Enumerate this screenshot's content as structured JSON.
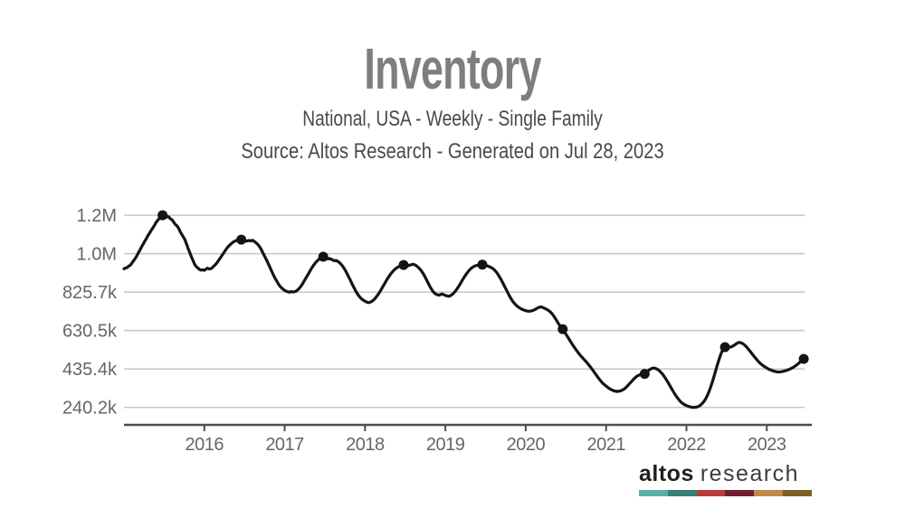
{
  "chart_data": {
    "type": "line",
    "title": "Inventory",
    "subtitle": "National, USA - Weekly - Single Family",
    "source": "Source: Altos Research - Generated on Jul 28, 2023",
    "grid": true,
    "legend": false,
    "x_axis": {
      "range": [
        2015.0,
        2023.56
      ],
      "tick_years": [
        2016,
        2017,
        2018,
        2019,
        2020,
        2021,
        2022,
        2023
      ]
    },
    "y_axis": {
      "unit": "count (k = thousands)",
      "range": [
        151,
        1276
      ],
      "ticks": [
        {
          "label": "1.2M",
          "value": 1216.0
        },
        {
          "label": "1.0M",
          "value": 1020.8
        },
        {
          "label": "825.7k",
          "value": 825.7
        },
        {
          "label": "630.5k",
          "value": 630.5
        },
        {
          "label": "435.4k",
          "value": 435.4
        },
        {
          "label": "240.2k",
          "value": 240.2
        }
      ]
    },
    "series": [
      {
        "name": "Single Family Inventory (thousands)",
        "x_start": 2015.0,
        "x_step": 0.02,
        "values": [
          944,
          948,
          950,
          958,
          962,
          974,
          985,
          996,
          1010,
          1026,
          1040,
          1056,
          1070,
          1085,
          1098,
          1114,
          1126,
          1140,
          1152,
          1165,
          1180,
          1190,
          1200,
          1210,
          1216,
          1209,
          1205,
          1210,
          1206,
          1197,
          1192,
          1180,
          1168,
          1162,
          1150,
          1132,
          1118,
          1105,
          1090,
          1068,
          1045,
          1025,
          1004,
          985,
          966,
          955,
          948,
          940,
          937,
          939,
          936,
          942,
          947,
          943,
          944,
          950,
          958,
          966,
          976,
          988,
          1000,
          1012,
          1024,
          1036,
          1048,
          1058,
          1066,
          1073,
          1080,
          1084,
          1088,
          1090,
          1091,
          1092,
          1089,
          1087,
          1084,
          1086,
          1088,
          1085,
          1089,
          1083,
          1077,
          1070,
          1060,
          1048,
          1032,
          1016,
          1000,
          984,
          966,
          948,
          930,
          912,
          896,
          882,
          868,
          856,
          848,
          840,
          834,
          830,
          827,
          825,
          828,
          826,
          827,
          830,
          836,
          844,
          854,
          866,
          880,
          894,
          908,
          922,
          936,
          950,
          962,
          973,
          982,
          990,
          997,
          1002,
          1005,
          1002,
          998,
          994,
          996,
          992,
          988,
          985,
          986,
          982,
          976,
          968,
          958,
          946,
          932,
          916,
          900,
          884,
          866,
          850,
          834,
          820,
          808,
          798,
          790,
          784,
          779,
          775,
          772,
          774,
          777,
          783,
          791,
          801,
          812,
          824,
          838,
          852,
          866,
          880,
          894,
          906,
          918,
          928,
          937,
          944,
          950,
          955,
          959,
          962,
          963,
          960,
          957,
          960,
          963,
          965,
          967,
          964,
          959,
          952,
          944,
          934,
          922,
          908,
          892,
          876,
          860,
          845,
          832,
          822,
          816,
          812,
          810,
          813,
          816,
          812,
          809,
          806,
          804,
          807,
          812,
          819,
          828,
          839,
          851,
          864,
          878,
          892,
          905,
          917,
          928,
          938,
          946,
          952,
          957,
          960,
          962,
          963,
          964,
          965,
          963,
          961,
          959,
          956,
          952,
          948,
          942,
          934,
          924,
          912,
          898,
          884,
          868,
          852,
          836,
          820,
          804,
          790,
          778,
          768,
          759,
          752,
          746,
          741,
          737,
          734,
          731,
          729,
          728,
          729,
          731,
          734,
          738,
          743,
          747,
          750,
          749,
          746,
          742,
          738,
          733,
          727,
          719,
          709,
          697,
          684,
          670,
          658,
          645,
          637,
          625,
          612,
          599,
          586,
          573,
          560,
          548,
          536,
          525,
          514,
          504,
          495,
          486,
          477,
          468,
          458,
          448,
          437,
          426,
          414,
          403,
          392,
          381,
          371,
          362,
          355,
          348,
          342,
          336,
          331,
          327,
          324,
          322,
          321,
          322,
          324,
          327,
          332,
          338,
          346,
          355,
          364,
          373,
          382,
          390,
          397,
          402,
          405,
          407,
          408,
          410,
          416,
          424,
          431,
          436,
          439,
          440,
          437,
          433,
          427,
          419,
          410,
          399,
          387,
          374,
          360,
          346,
          332,
          318,
          305,
          293,
          282,
          272,
          264,
          258,
          253,
          249,
          246,
          243,
          241,
          240,
          240,
          241,
          243,
          247,
          253,
          261,
          271,
          284,
          300,
          319,
          341,
          366,
          393,
          421,
          449,
          476,
          501,
          522,
          538,
          546,
          549,
          547,
          545,
          548,
          552,
          557,
          563,
          568,
          570,
          568,
          564,
          558,
          550,
          541,
          531,
          521,
          510,
          500,
          490,
          480,
          471,
          463,
          456,
          450,
          445,
          440,
          435,
          431,
          428,
          425,
          423,
          421,
          420,
          420,
          421,
          423,
          425,
          427,
          430,
          433,
          437,
          441,
          446,
          452,
          458,
          465,
          472,
          479,
          486
        ]
      }
    ],
    "markers": [
      [
        2015.48,
        1216
      ],
      [
        2016.46,
        1092
      ],
      [
        2017.48,
        1005
      ],
      [
        2018.48,
        963
      ],
      [
        2019.46,
        965
      ],
      [
        2020.46,
        637
      ],
      [
        2021.48,
        410
      ],
      [
        2022.48,
        546
      ],
      [
        2023.46,
        486
      ]
    ],
    "colors": {
      "line": "#141414",
      "marker": "#141414",
      "grid": "#c6c6c6",
      "axis": "#4d4d4d",
      "tick_label": "#666666",
      "title": "#7e7e7e",
      "subtitle": "#4a4a4a"
    }
  },
  "footer": {
    "brand_bold": "altos",
    "brand_light": "research",
    "brand_colors": [
      "#58b1a7",
      "#377f78",
      "#b93a3b",
      "#6f2030",
      "#c0894a",
      "#7d5d26"
    ]
  }
}
